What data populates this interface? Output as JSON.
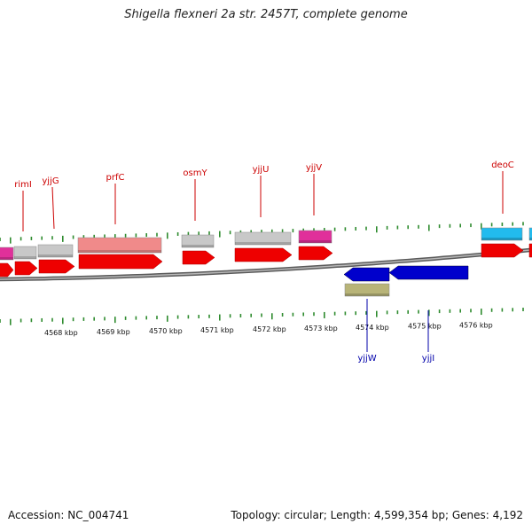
{
  "title": "Shigella flexneri 2a str. 2457T, complete genome",
  "footer": {
    "accession": "Accession: NC_004741",
    "summary": "Topology: circular; Length: 4,599,354 bp; Genes: 4,192"
  },
  "colors": {
    "forward_cds": "#ee0000",
    "reverse_cds": "#0000cc",
    "hypothetical": "#c8c8c8",
    "pink_feature": "#e0309a",
    "salmon_feature": "#f08a8a",
    "cyan_feature": "#22bbee",
    "olive_feature": "#b8b478",
    "tick_green": "#2e8b2e",
    "label_forward": "#cc0000",
    "label_reverse": "#0000aa",
    "backbone": "#7a7a7a"
  },
  "axis": {
    "unit": "kbp",
    "labels": [
      "4568 kbp",
      "4569 kbp",
      "4570 kbp",
      "4571 kbp",
      "4572 kbp",
      "4573 kbp",
      "4574 kbp",
      "4575 kbp",
      "4576 kbp"
    ]
  },
  "gene_labels_top": [
    "rimI",
    "yjjG",
    "prfC",
    "osmY",
    "yjjU",
    "yjjV",
    "deoC"
  ],
  "gene_labels_bottom": [
    "yjjW",
    "yjjI"
  ]
}
